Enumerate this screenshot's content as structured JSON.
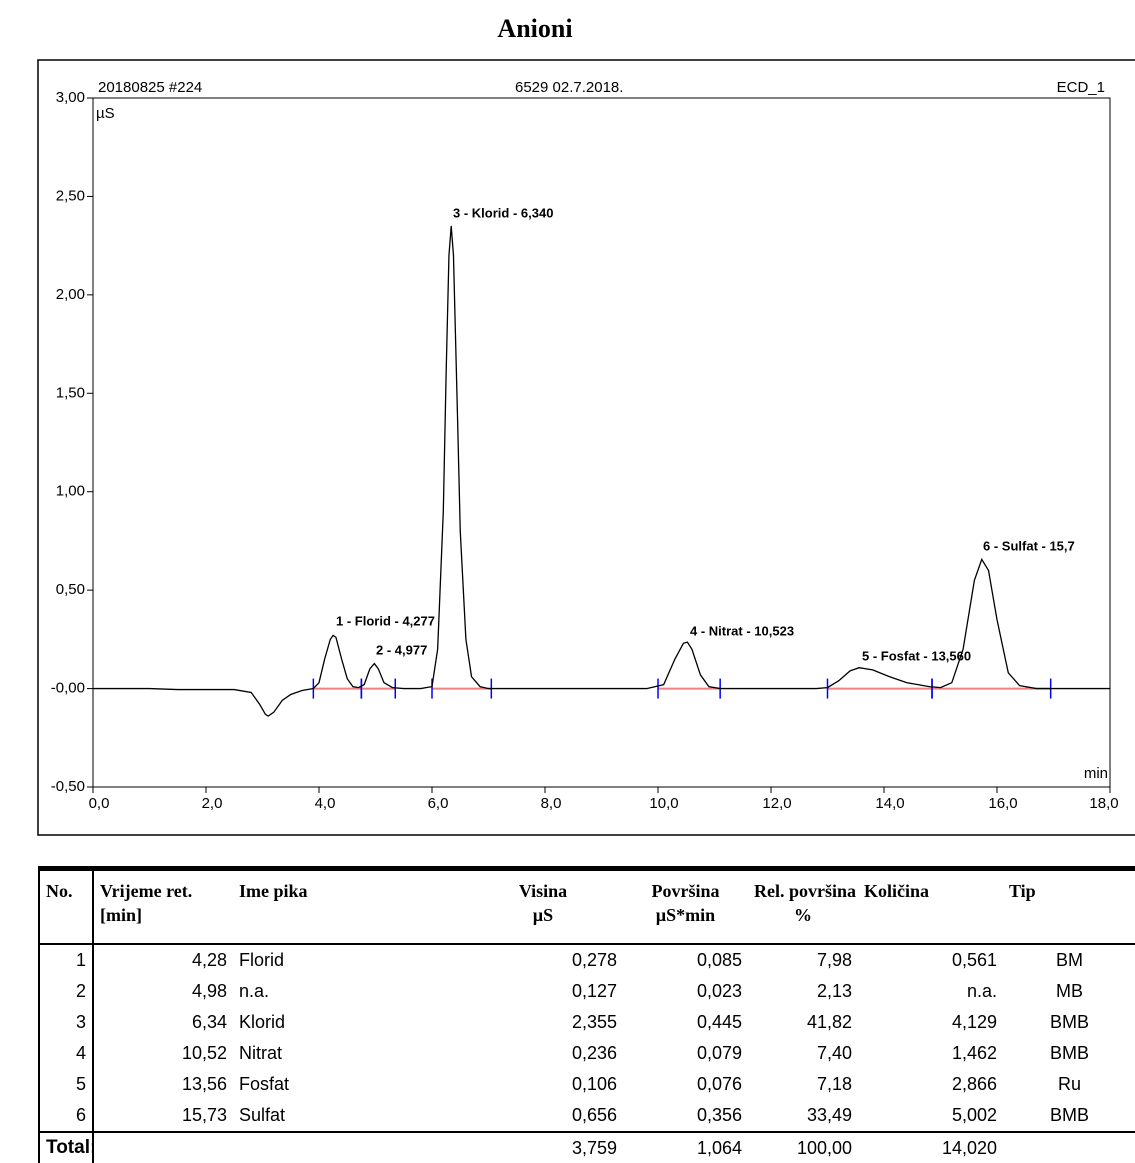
{
  "title": "Anioni",
  "chart_data": {
    "type": "line",
    "header_left": "20180825 #224",
    "header_center": "6529 02.7.2018.",
    "header_right": "ECD_1",
    "y_label": "µS",
    "x_label": "min",
    "x": [
      0,
      0.5,
      1,
      1.5,
      2,
      2.5,
      2.8,
      2.95,
      3.05,
      3.1,
      3.2,
      3.35,
      3.5,
      3.7,
      3.9,
      4.0,
      4.1,
      4.2,
      4.25,
      4.3,
      4.4,
      4.5,
      4.6,
      4.7,
      4.8,
      4.9,
      4.98,
      5.05,
      5.15,
      5.3,
      5.5,
      5.8,
      6.0,
      6.1,
      6.2,
      6.25,
      6.3,
      6.34,
      6.38,
      6.45,
      6.5,
      6.6,
      6.7,
      6.85,
      7.0,
      7.5,
      8,
      9,
      9.8,
      10.1,
      10.3,
      10.45,
      10.52,
      10.6,
      10.75,
      10.9,
      11.1,
      11.5,
      12,
      12.8,
      13.0,
      13.2,
      13.4,
      13.56,
      13.8,
      14.1,
      14.4,
      14.8,
      15.0,
      15.2,
      15.4,
      15.6,
      15.73,
      15.85,
      16.0,
      16.2,
      16.4,
      16.7,
      17,
      17.5,
      18
    ],
    "values": [
      0,
      0,
      0,
      -0.005,
      -0.005,
      -0.005,
      -0.02,
      -0.08,
      -0.13,
      -0.14,
      -0.12,
      -0.06,
      -0.03,
      -0.01,
      0,
      0.03,
      0.15,
      0.25,
      0.27,
      0.26,
      0.15,
      0.05,
      0.01,
      0.005,
      0.02,
      0.1,
      0.127,
      0.1,
      0.03,
      0.005,
      0,
      0,
      0.01,
      0.2,
      0.9,
      1.6,
      2.2,
      2.35,
      2.2,
      1.4,
      0.8,
      0.25,
      0.06,
      0.01,
      0,
      0,
      0,
      0,
      0,
      0.02,
      0.15,
      0.23,
      0.236,
      0.2,
      0.07,
      0.01,
      0,
      0,
      0,
      0,
      0.005,
      0.04,
      0.09,
      0.106,
      0.095,
      0.06,
      0.03,
      0.01,
      0.005,
      0.03,
      0.2,
      0.55,
      0.656,
      0.6,
      0.35,
      0.08,
      0.015,
      0,
      0,
      0,
      0
    ],
    "color": "#000000",
    "peak_windows": [
      [
        3.9,
        4.75
      ],
      [
        4.75,
        5.35
      ],
      [
        6.0,
        7.05
      ],
      [
        10.0,
        11.1
      ],
      [
        13.0,
        14.85
      ],
      [
        14.85,
        16.95
      ]
    ],
    "annotations": [
      "1 - Florid - 4,277",
      "2 - 4,977",
      "3 - Klorid - 6,340",
      "4 - Nitrat - 10,523",
      "5 - Fosfat - 13,560",
      "6 - Sulfat - 15,7"
    ],
    "xlim": [
      0,
      18
    ],
    "xticks": [
      {
        "value": 0,
        "label": "0,0"
      },
      {
        "value": 2,
        "label": "2,0"
      },
      {
        "value": 4,
        "label": "4,0"
      },
      {
        "value": 6,
        "label": "6,0"
      },
      {
        "value": 8,
        "label": "8,0"
      },
      {
        "value": 10,
        "label": "10,0"
      },
      {
        "value": 12,
        "label": "12,0"
      },
      {
        "value": 14,
        "label": "14,0"
      },
      {
        "value": 16,
        "label": "16,0"
      },
      {
        "value": 18,
        "label": "18,0"
      }
    ],
    "ylim": [
      -0.5,
      3
    ],
    "yticks": [
      {
        "value": -0.5,
        "label": "-0,50"
      },
      {
        "value": 0,
        "label": "-0,00"
      },
      {
        "value": 0.5,
        "label": "0,50"
      },
      {
        "value": 1,
        "label": "1,00"
      },
      {
        "value": 1.5,
        "label": "1,50"
      },
      {
        "value": 2,
        "label": "2,00"
      },
      {
        "value": 2.5,
        "label": "2,50"
      },
      {
        "value": 3,
        "label": "3,00"
      }
    ]
  },
  "table": {
    "header": [
      [
        "No."
      ],
      [
        "Vrijeme ret.",
        "[min]"
      ],
      [
        "Ime pika"
      ],
      [
        "Visina",
        "µS"
      ],
      [
        "Površina",
        "µS*min"
      ],
      [
        "Rel. površina",
        "%"
      ],
      [
        "Količina"
      ],
      [
        "Tip"
      ]
    ],
    "rows": [
      [
        "1",
        "4,28",
        "Florid",
        "0,278",
        "0,085",
        "7,98",
        "0,561",
        "BM"
      ],
      [
        "2",
        "4,98",
        "n.a.",
        "0,127",
        "0,023",
        "2,13",
        "n.a.",
        "MB"
      ],
      [
        "3",
        "6,34",
        "Klorid",
        "2,355",
        "0,445",
        "41,82",
        "4,129",
        "BMB"
      ],
      [
        "4",
        "10,52",
        "Nitrat",
        "0,236",
        "0,079",
        "7,40",
        "1,462",
        "BMB"
      ],
      [
        "5",
        "13,56",
        "Fosfat",
        "0,106",
        "0,076",
        "7,18",
        "2,866",
        "Ru"
      ],
      [
        "6",
        "15,73",
        "Sulfat",
        "0,656",
        "0,356",
        "33,49",
        "5,002",
        "BMB"
      ]
    ],
    "total": {
      "label": "Total:",
      "visina": "3,759",
      "povrsina": "1,064",
      "rel": "100,00",
      "kolicina": "14,020"
    }
  }
}
